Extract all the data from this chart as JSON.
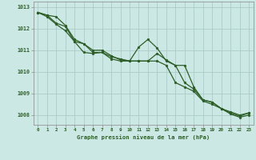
{
  "xlabel": "Graphe pression niveau de la mer (hPa)",
  "background_color": "#cce8e4",
  "grid_color": "#aaccc8",
  "line_color": "#2d5e28",
  "hours": [
    0,
    1,
    2,
    3,
    4,
    5,
    6,
    7,
    8,
    9,
    10,
    11,
    12,
    13,
    14,
    15,
    16,
    17,
    18,
    19,
    20,
    21,
    22,
    23
  ],
  "line1": [
    1012.75,
    1012.62,
    1012.55,
    1012.15,
    1011.5,
    1011.3,
    1010.9,
    1010.9,
    1010.7,
    1010.6,
    1010.5,
    1011.15,
    1011.5,
    1011.1,
    1010.5,
    1010.3,
    1010.3,
    1009.3,
    1008.7,
    1008.6,
    1008.3,
    1008.15,
    1008.0,
    1008.1
  ],
  "line2": [
    1012.75,
    1012.62,
    1012.25,
    1012.1,
    1011.4,
    1011.3,
    1011.0,
    1011.0,
    1010.75,
    1010.55,
    1010.5,
    1010.5,
    1010.5,
    1010.85,
    1010.55,
    1010.3,
    1009.5,
    1009.2,
    1008.7,
    1008.6,
    1008.3,
    1008.1,
    1007.95,
    1008.1
  ],
  "line3": [
    1012.75,
    1012.55,
    1012.2,
    1011.9,
    1011.4,
    1010.9,
    1010.85,
    1010.9,
    1010.6,
    1010.5,
    1010.5,
    1010.5,
    1010.5,
    1010.5,
    1010.3,
    1009.5,
    1009.3,
    1009.1,
    1008.65,
    1008.5,
    1008.3,
    1008.05,
    1007.9,
    1008.0
  ],
  "ylim_min": 1007.55,
  "ylim_max": 1013.25,
  "yticks": [
    1008,
    1009,
    1010,
    1011,
    1012,
    1013
  ]
}
